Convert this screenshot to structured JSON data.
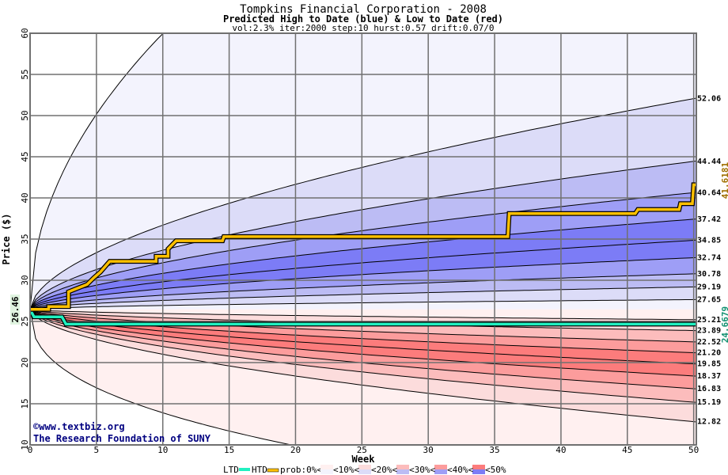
{
  "chart_data": {
    "type": "area",
    "title": "Tompkins Financial Corporation - 2008",
    "subtitle": "Predicted High to Date (blue) &  Low to Date (red)",
    "params": "vol:2.3% iter:2000 step:10 hurst:0.57 drift:0.07/0",
    "xlabel": "Week",
    "ylabel": "Price ($)",
    "xlim": [
      0,
      50.2
    ],
    "ylim": [
      10,
      60
    ],
    "grid": true,
    "x_ticks": [
      "0",
      "5",
      "10",
      "15",
      "20",
      "25",
      "30",
      "35",
      "40",
      "45",
      "50"
    ],
    "y_ticks": [
      "10",
      "15",
      "20",
      "25",
      "30",
      "35",
      "40",
      "45",
      "50",
      "55",
      "60"
    ],
    "start_price": 26.46,
    "start_label": "26.46",
    "high_quantiles_at_end": [
      "27.65",
      "29.19",
      "30.78",
      "32.74",
      "34.85",
      "37.42",
      "40.64",
      "44.44",
      "52.06"
    ],
    "low_quantiles_at_end": [
      "25.21",
      "23.89",
      "22.52",
      "21.20",
      "19.85",
      "18.37",
      "16.83",
      "15.19",
      "12.82"
    ],
    "htd_series": {
      "name": "HTD",
      "x": [
        0,
        1.4,
        1.4,
        2.9,
        2.9,
        4.3,
        4.8,
        5.3,
        6.0,
        9.5,
        9.5,
        10.4,
        10.4,
        11.0,
        14.5,
        14.6,
        36.0,
        36.1,
        45.6,
        45.8,
        48.9,
        49.0,
        49.9,
        50.0,
        50.2
      ],
      "y": [
        26.46,
        26.46,
        26.8,
        26.8,
        28.6,
        29.5,
        30.3,
        31.0,
        32.3,
        32.3,
        32.9,
        32.9,
        33.8,
        34.8,
        34.8,
        35.3,
        35.3,
        38.1,
        38.1,
        38.6,
        38.6,
        39.3,
        39.3,
        41.6,
        41.6
      ]
    },
    "ltd_series": {
      "name": "LTD",
      "x": [
        0,
        0.3,
        2.4,
        2.7,
        50.2
      ],
      "y": [
        26.46,
        25.55,
        25.55,
        24.67,
        24.67
      ]
    },
    "htd_final_label": "41.6181",
    "ltd_final_label": "24.6679",
    "colors": {
      "htd": "#ffc000",
      "ltd": "#20f0c0",
      "htd_label": "#a07000",
      "ltd_label": "#109070",
      "blue_bands": [
        "#f3f3fd",
        "#dcdcf8",
        "#bcbcf4",
        "#9e9ef6",
        "#7c7cf6"
      ],
      "red_bands": [
        "#fff0f0",
        "#fcdcdc",
        "#fcbcbc",
        "#fc9c9c",
        "#fc7c7c"
      ],
      "grid": "#707070"
    },
    "legend": {
      "ltd": "LTD",
      "htd": "HTD",
      "prob": "prob:0%<",
      "b10": "<10%<",
      "b20": "<20%<",
      "b30": "<30%<",
      "b40": "<40%<",
      "b50": "<50%"
    },
    "watermark": {
      "line1": "©www.textbiz.org",
      "line2": "The Research Foundation of SUNY"
    }
  }
}
